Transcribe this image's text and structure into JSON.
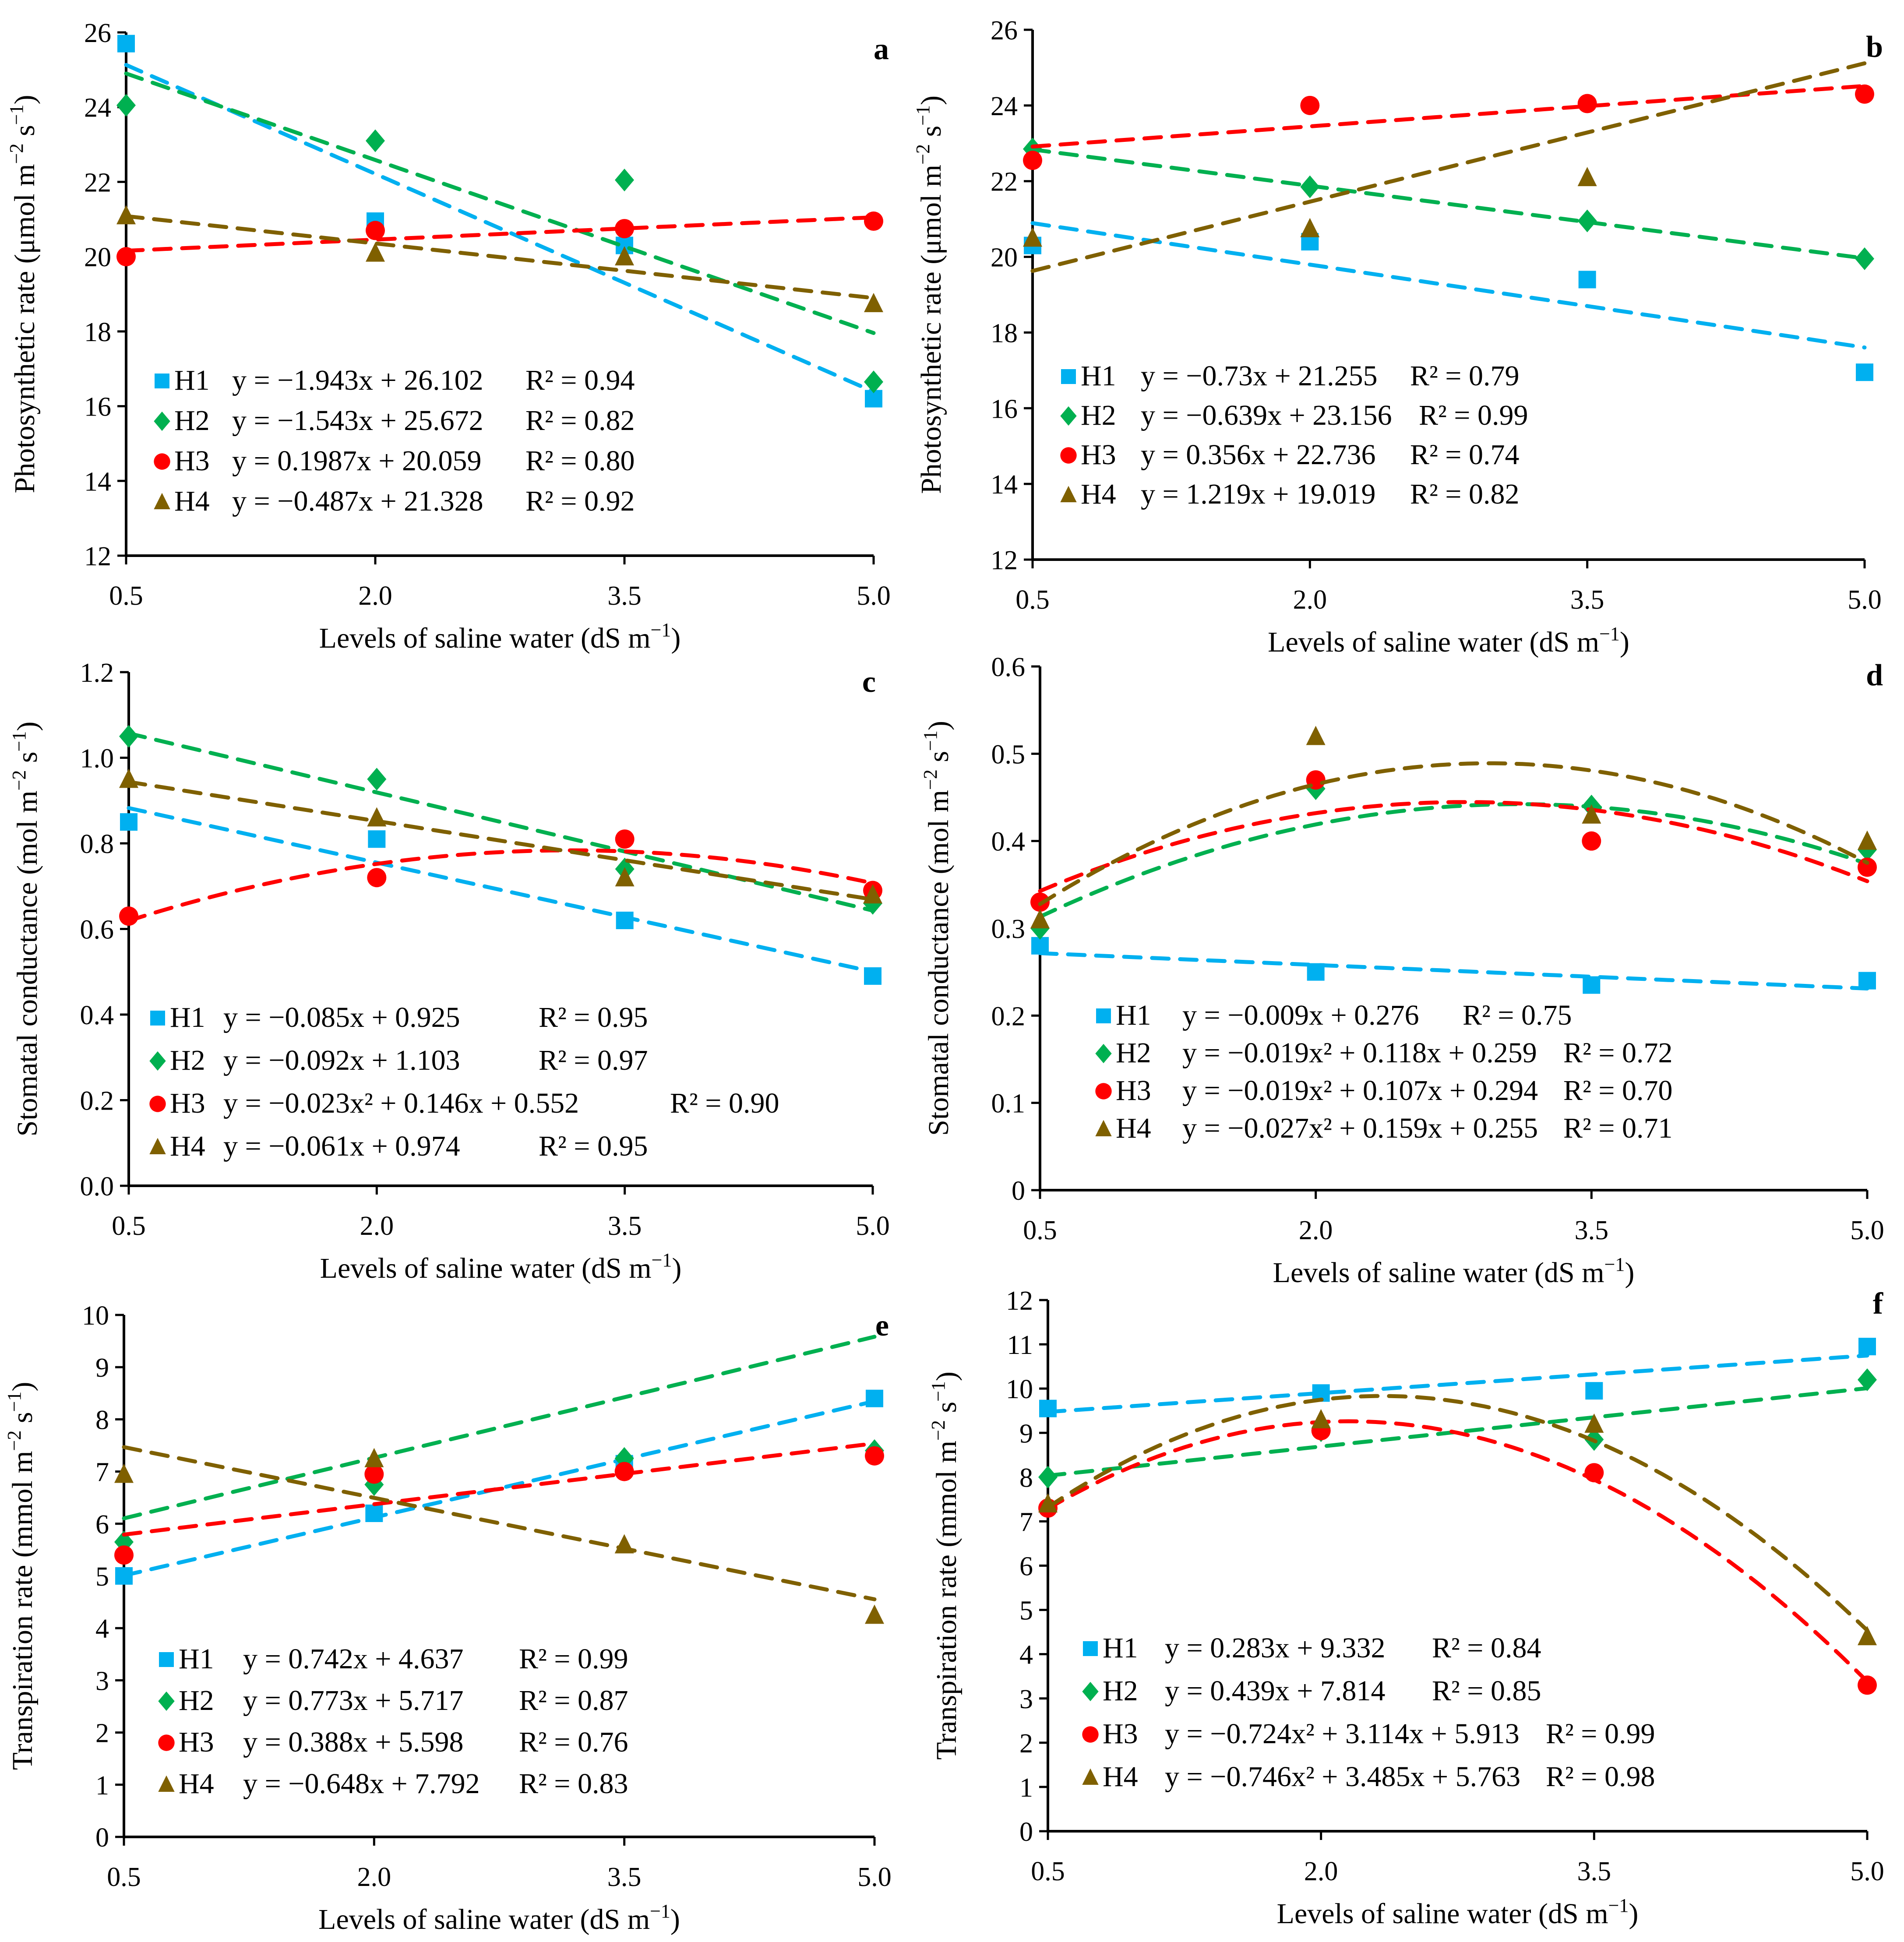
{
  "figure": {
    "x_axis_label": "Levels of saline water (dS m",
    "x_axis_sup": "−1",
    "x_axis_close": ")"
  },
  "series_styles": {
    "H1": {
      "color": "#00B0F0",
      "marker": "square"
    },
    "H2": {
      "color": "#00B050",
      "marker": "diamond"
    },
    "H3": {
      "color": "#FF0000",
      "marker": "circle"
    },
    "H4": {
      "color": "#7F6000",
      "marker": "triangle"
    }
  },
  "chart_data": [
    {
      "panel": "a",
      "type": "scatter",
      "ylabel": "Photosynthetic rate (μmol m",
      "ylabel_sup": "−2",
      "ylabel_mid": " s",
      "ylabel_sup2": "−1",
      "ylabel_close": ")",
      "xlabel": "Levels of saline water (dS m−1)",
      "x": [
        0.5,
        2.0,
        3.5,
        5.0
      ],
      "xticks": [
        "0.5",
        "2.0",
        "3.5",
        "5.0"
      ],
      "ylim": [
        12,
        26
      ],
      "yticks": [
        "12",
        "14",
        "16",
        "18",
        "20",
        "22",
        "24",
        "26"
      ],
      "series": [
        {
          "name": "H1",
          "values": [
            25.7,
            20.95,
            20.3,
            16.2
          ],
          "fit": {
            "type": "linear",
            "coef": [
              -1.943,
              26.102
            ]
          },
          "equation": "y = −1.943x + 26.102",
          "r2": "R² = 0.94"
        },
        {
          "name": "H2",
          "values": [
            24.05,
            23.1,
            22.05,
            16.65
          ],
          "fit": {
            "type": "linear",
            "coef": [
              -1.543,
              25.672
            ]
          },
          "equation": "y = −1.543x + 25.672",
          "r2": "R² = 0.82"
        },
        {
          "name": "H3",
          "values": [
            20.0,
            20.7,
            20.75,
            20.95
          ],
          "fit": {
            "type": "linear",
            "coef": [
              0.1987,
              20.059
            ]
          },
          "equation": "y = 0.1987x + 20.059",
          "r2": "R² = 0.80"
        },
        {
          "name": "H4",
          "values": [
            21.1,
            20.1,
            20.0,
            18.75
          ],
          "fit": {
            "type": "linear",
            "coef": [
              -0.487,
              21.328
            ]
          },
          "equation": "y = −0.487x + 21.328",
          "r2": "R² = 0.92"
        }
      ]
    },
    {
      "panel": "b",
      "type": "scatter",
      "ylabel": "Photosynthetic rate (μmol m",
      "ylabel_sup": "−2",
      "ylabel_mid": " s",
      "ylabel_sup2": "−1",
      "ylabel_close": ")",
      "xlabel": "Levels of saline water (dS m−1)",
      "x": [
        0.5,
        2.0,
        3.5,
        5.0
      ],
      "xticks": [
        "0.5",
        "2.0",
        "3.5",
        "5.0"
      ],
      "ylim": [
        12,
        26
      ],
      "yticks": [
        "12",
        "14",
        "16",
        "18",
        "20",
        "22",
        "24",
        "26"
      ],
      "series": [
        {
          "name": "H1",
          "values": [
            20.3,
            20.4,
            19.4,
            16.95
          ],
          "fit": {
            "type": "linear",
            "coef": [
              -0.73,
              21.255
            ]
          },
          "equation": "y = −0.73x + 21.255",
          "r2": "R² = 0.79"
        },
        {
          "name": "H2",
          "values": [
            22.85,
            21.85,
            20.95,
            19.95
          ],
          "fit": {
            "type": "linear",
            "coef": [
              -0.639,
              23.156
            ]
          },
          "equation": "y = −0.639x + 23.156",
          "r2": "R² = 0.99"
        },
        {
          "name": "H3",
          "values": [
            22.55,
            24.0,
            24.05,
            24.3
          ],
          "fit": {
            "type": "linear",
            "coef": [
              0.356,
              22.736
            ]
          },
          "equation": "y = 0.356x + 22.736",
          "r2": "R² = 0.74"
        },
        {
          "name": "H4",
          "values": [
            20.5,
            20.75,
            22.1,
            null
          ],
          "fit": {
            "type": "linear",
            "coef": [
              1.219,
              19.019
            ]
          },
          "equation": "y = 1.219x + 19.019",
          "r2": "R² = 0.82"
        }
      ]
    },
    {
      "panel": "c",
      "type": "scatter",
      "ylabel": "Stomatal conductance (mol m",
      "ylabel_sup": "−2",
      "ylabel_mid": " s",
      "ylabel_sup2": "−1",
      "ylabel_close": ")",
      "xlabel": "Levels of saline water (dS m−1)",
      "x": [
        0.5,
        2.0,
        3.5,
        5.0
      ],
      "xticks": [
        "0.5",
        "2.0",
        "3.5",
        "5.0"
      ],
      "ylim": [
        0,
        1.2
      ],
      "yticks": [
        "0.0",
        "0.2",
        "0.4",
        "0.6",
        "0.8",
        "1.0",
        "1.2"
      ],
      "series": [
        {
          "name": "H1",
          "values": [
            0.85,
            0.81,
            0.62,
            0.49
          ],
          "fit": {
            "type": "linear",
            "coef": [
              -0.085,
              0.925
            ]
          },
          "equation": "y = −0.085x + 0.925",
          "r2": "R² = 0.95"
        },
        {
          "name": "H2",
          "values": [
            1.05,
            0.95,
            0.74,
            0.66
          ],
          "fit": {
            "type": "linear",
            "coef": [
              -0.092,
              1.103
            ]
          },
          "equation": "y = −0.092x + 1.103",
          "r2": "R² = 0.97"
        },
        {
          "name": "H3",
          "values": [
            0.63,
            0.72,
            0.81,
            0.69
          ],
          "fit": {
            "type": "quadratic",
            "coef": [
              -0.023,
              0.146,
              0.552
            ]
          },
          "equation": "y = −0.023x² + 0.146x + 0.552",
          "r2": "R² = 0.90"
        },
        {
          "name": "H4",
          "values": [
            0.95,
            0.86,
            0.72,
            0.68
          ],
          "fit": {
            "type": "linear",
            "coef": [
              -0.061,
              0.974
            ]
          },
          "equation": "y = −0.061x + 0.974",
          "r2": "R² = 0.95"
        }
      ]
    },
    {
      "panel": "d",
      "type": "scatter",
      "ylabel": "Stomatal conductance (mol m",
      "ylabel_sup": "−2",
      "ylabel_mid": " s",
      "ylabel_sup2": "−1",
      "ylabel_close": ")",
      "xlabel": "Levels of saline water (dS m−1)",
      "x": [
        0.5,
        2.0,
        3.5,
        5.0
      ],
      "xticks": [
        "0.5",
        "2.0",
        "3.5",
        "5.0"
      ],
      "ylim": [
        0,
        0.6
      ],
      "yticks": [
        "0",
        "0.1",
        "0.2",
        "0.3",
        "0.4",
        "0.5",
        "0.6"
      ],
      "series": [
        {
          "name": "H1",
          "values": [
            0.28,
            0.25,
            0.235,
            0.24
          ],
          "fit": {
            "type": "linear",
            "coef": [
              -0.009,
              0.276
            ]
          },
          "equation": "y = −0.009x + 0.276",
          "r2": "R² = 0.75"
        },
        {
          "name": "H2",
          "values": [
            0.3,
            0.46,
            0.44,
            0.39
          ],
          "fit": {
            "type": "quadratic",
            "coef": [
              -0.019,
              0.118,
              0.259
            ]
          },
          "equation": "y = −0.019x² + 0.118x + 0.259",
          "r2": "R² = 0.72"
        },
        {
          "name": "H3",
          "values": [
            0.33,
            0.47,
            0.4,
            0.37
          ],
          "fit": {
            "type": "quadratic",
            "coef": [
              -0.019,
              0.107,
              0.294
            ]
          },
          "equation": "y = −0.019x² + 0.107x + 0.294",
          "r2": "R² = 0.70"
        },
        {
          "name": "H4",
          "values": [
            0.31,
            0.52,
            0.43,
            0.4
          ],
          "fit": {
            "type": "quadratic",
            "coef": [
              -0.027,
              0.159,
              0.255
            ]
          },
          "equation": "y = −0.027x² + 0.159x + 0.255",
          "r2": "R² = 0.71"
        }
      ]
    },
    {
      "panel": "e",
      "type": "scatter",
      "ylabel": "Transpiration rate  (mmol m",
      "ylabel_sup": "−2",
      "ylabel_mid": " s",
      "ylabel_sup2": "−1",
      "ylabel_close": ")",
      "xlabel": "Levels of saline water (dS m−1)",
      "x": [
        0.5,
        2.0,
        3.5,
        5.0
      ],
      "xticks": [
        "0.5",
        "2.0",
        "3.5",
        "5.0"
      ],
      "ylim": [
        0,
        10
      ],
      "yticks": [
        "0",
        "1",
        "2",
        "3",
        "4",
        "5",
        "6",
        "7",
        "8",
        "9",
        "10"
      ],
      "series": [
        {
          "name": "H1",
          "values": [
            5.0,
            6.2,
            7.15,
            8.4
          ],
          "fit": {
            "type": "linear",
            "coef": [
              0.742,
              4.637
            ]
          },
          "equation": "y = 0.742x + 4.637",
          "r2": "R² = 0.99"
        },
        {
          "name": "H2",
          "values": [
            5.65,
            6.75,
            7.25,
            7.4
          ],
          "fit": {
            "type": "linear",
            "coef": [
              0.773,
              5.717
            ]
          },
          "equation": "y = 0.773x + 5.717",
          "r2": "R² = 0.87"
        },
        {
          "name": "H3",
          "values": [
            5.4,
            6.95,
            7.0,
            7.3
          ],
          "fit": {
            "type": "linear",
            "coef": [
              0.388,
              5.598
            ]
          },
          "equation": "y = 0.388x + 5.598",
          "r2": "R² = 0.76"
        },
        {
          "name": "H4",
          "values": [
            6.95,
            7.25,
            5.6,
            4.25
          ],
          "fit": {
            "type": "linear",
            "coef": [
              -0.648,
              7.792
            ]
          },
          "equation": "y = −0.648x + 7.792",
          "r2": "R² = 0.83"
        }
      ]
    },
    {
      "panel": "f",
      "type": "scatter",
      "ylabel": "Transpiration rate  (mmol m",
      "ylabel_sup": "−2",
      "ylabel_mid": " s",
      "ylabel_sup2": "−1",
      "ylabel_close": ")",
      "xlabel": "Levels of saline water (dS m−1)",
      "x": [
        0.5,
        2.0,
        3.5,
        5.0
      ],
      "xticks": [
        "0.5",
        "2.0",
        "3.5",
        "5.0"
      ],
      "ylim": [
        0,
        12
      ],
      "yticks": [
        "0",
        "1",
        "2",
        "3",
        "4",
        "5",
        "6",
        "7",
        "8",
        "9",
        "10",
        "11",
        "12"
      ],
      "series": [
        {
          "name": "H1",
          "values": [
            9.55,
            9.9,
            9.95,
            10.95
          ],
          "fit": {
            "type": "linear",
            "coef": [
              0.283,
              9.332
            ]
          },
          "equation": "y = 0.283x + 9.332",
          "r2": "R² = 0.84"
        },
        {
          "name": "H2",
          "values": [
            8.0,
            9.05,
            8.85,
            10.2
          ],
          "fit": {
            "type": "linear",
            "coef": [
              0.439,
              7.814
            ]
          },
          "equation": "y = 0.439x + 7.814",
          "r2": "R² = 0.85"
        },
        {
          "name": "H3",
          "values": [
            7.3,
            9.05,
            8.1,
            3.3
          ],
          "fit": {
            "type": "quadratic",
            "coef": [
              -0.724,
              3.114,
              5.913
            ]
          },
          "equation": "y = −0.724x² + 3.114x + 5.913",
          "r2": "R² = 0.99"
        },
        {
          "name": "H4",
          "values": [
            7.4,
            9.3,
            9.2,
            4.4
          ],
          "fit": {
            "type": "quadratic",
            "coef": [
              -0.746,
              3.485,
              5.763
            ]
          },
          "equation": "y = −0.746x² + 3.485x + 5.763",
          "r2": "R² = 0.98"
        }
      ]
    }
  ]
}
